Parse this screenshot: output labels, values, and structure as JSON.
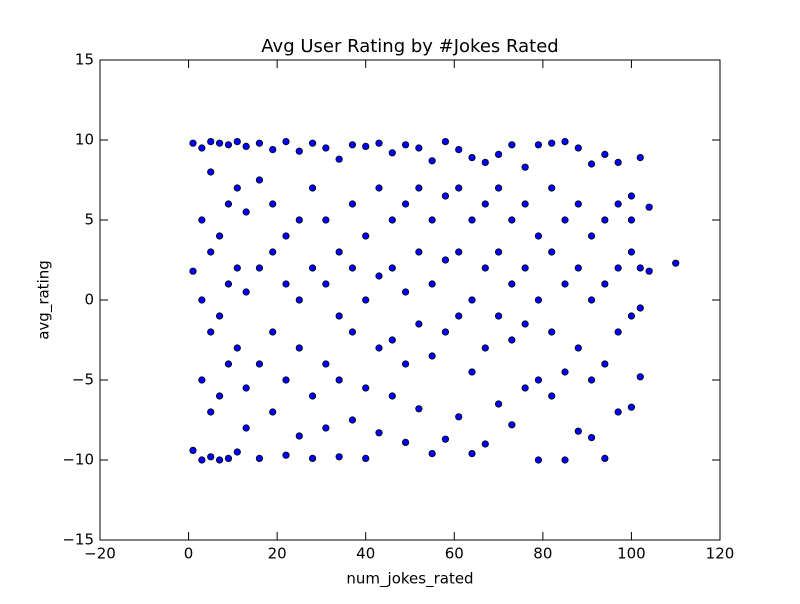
{
  "chart_data": {
    "type": "scatter",
    "title": "Avg User Rating by #Jokes Rated",
    "xlabel": "num_jokes_rated",
    "ylabel": "avg_rating",
    "color": "#0000ff",
    "edgecolor": "#000000",
    "xlim": [
      -20,
      120
    ],
    "ylim": [
      -15,
      15
    ],
    "xticks": [
      {
        "value": -20,
        "label": "−20"
      },
      0,
      20,
      40,
      60,
      80,
      100,
      120
    ],
    "yticks": [
      {
        "value": -15,
        "label": "−15"
      },
      {
        "value": -10,
        "label": "−10"
      },
      {
        "value": -5,
        "label": "−5"
      },
      0,
      5,
      10,
      15
    ],
    "x": [
      1,
      1,
      1,
      3,
      3,
      3,
      3,
      3,
      5,
      5,
      5,
      5,
      5,
      5,
      7,
      7,
      7,
      7,
      7,
      9,
      9,
      9,
      9,
      9,
      11,
      11,
      11,
      11,
      11,
      13,
      13,
      13,
      13,
      13,
      16,
      16,
      16,
      16,
      16,
      19,
      19,
      19,
      19,
      19,
      22,
      22,
      22,
      22,
      22,
      25,
      25,
      25,
      25,
      25,
      28,
      28,
      28,
      28,
      28,
      31,
      31,
      31,
      31,
      31,
      34,
      34,
      34,
      34,
      34,
      37,
      37,
      37,
      37,
      37,
      40,
      40,
      40,
      40,
      40,
      43,
      43,
      43,
      43,
      43,
      46,
      46,
      46,
      46,
      46,
      49,
      49,
      49,
      49,
      49,
      52,
      52,
      52,
      52,
      52,
      55,
      55,
      55,
      55,
      55,
      58,
      58,
      58,
      58,
      58,
      61,
      61,
      61,
      61,
      61,
      64,
      64,
      64,
      64,
      64,
      67,
      67,
      67,
      67,
      67,
      70,
      70,
      70,
      70,
      70,
      73,
      73,
      73,
      73,
      73,
      76,
      76,
      76,
      76,
      76,
      79,
      79,
      79,
      79,
      79,
      82,
      82,
      82,
      82,
      82,
      85,
      85,
      85,
      85,
      85,
      88,
      88,
      88,
      88,
      88,
      91,
      91,
      91,
      91,
      91,
      94,
      94,
      94,
      94,
      94,
      97,
      97,
      97,
      97,
      97,
      100,
      100,
      100,
      100,
      100,
      102,
      102,
      102,
      102,
      104,
      104,
      110
    ],
    "y": [
      9.8,
      -9.4,
      1.8,
      -10,
      -5,
      0,
      5,
      9.5,
      -9.8,
      -7,
      -2,
      3,
      8,
      9.9,
      -10,
      -6,
      -1,
      4,
      9.8,
      -9.9,
      -4,
      1,
      6,
      9.7,
      -9.5,
      -3,
      2,
      7,
      9.9,
      -8,
      -5.5,
      0.5,
      5.5,
      9.6,
      -9.9,
      -4,
      2,
      7.5,
      9.8,
      -7,
      -2,
      3,
      6,
      9.4,
      -9.7,
      -5,
      1,
      4,
      9.9,
      -8.5,
      -3,
      0,
      5,
      9.3,
      -9.9,
      -6,
      2,
      7,
      9.8,
      -8,
      -4,
      1,
      5,
      9.5,
      -9.8,
      -5,
      -1,
      3,
      8.8,
      -7.5,
      -2,
      2,
      6,
      9.7,
      -9.9,
      -5.5,
      0,
      4,
      9.6,
      -8.3,
      -3,
      1.5,
      7,
      9.8,
      -6,
      -2.5,
      2,
      5,
      9.2,
      -8.9,
      -4,
      0.5,
      6,
      9.7,
      -6.8,
      -1.5,
      3,
      7,
      9.5,
      -9.6,
      -3.5,
      1,
      5,
      8.7,
      -8.7,
      -2,
      2.5,
      6.5,
      9.9,
      -7.3,
      -1,
      3,
      7,
      9.4,
      -9.6,
      -4.5,
      0,
      5,
      8.9,
      -9,
      -3,
      2,
      6,
      8.6,
      -6.5,
      -1,
      3,
      7,
      9.1,
      -7.8,
      -2.5,
      1,
      5,
      9.7,
      -5.5,
      -1.5,
      2,
      6,
      8.3,
      -10,
      -5,
      0,
      4,
      9.7,
      -6,
      -2,
      3,
      7,
      9.8,
      -10,
      -4.5,
      1,
      5,
      9.9,
      -8.2,
      -3,
      2,
      6,
      9.5,
      -8.6,
      -5,
      0,
      4,
      8.5,
      -9.9,
      -4,
      1,
      5,
      9.1,
      -7,
      -2,
      2,
      6,
      8.6,
      -6.7,
      -1,
      3,
      5,
      6.5,
      -4.8,
      -0.5,
      2,
      8.9,
      5.8,
      1.8,
      2.3
    ]
  }
}
